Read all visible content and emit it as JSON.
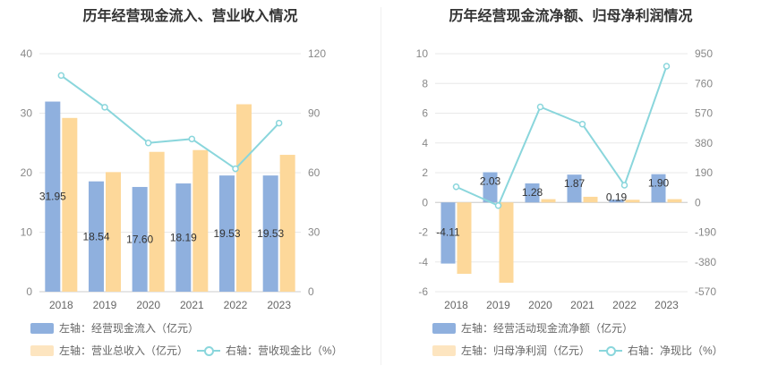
{
  "charts": [
    {
      "title": "历年经营现金流入、营业收入情况",
      "legend": {
        "bar1": "左轴：经营现金流入（亿元）",
        "bar2": "左轴：营业总收入（亿元）",
        "line": "右轴：营收现金比（%）"
      }
    },
    {
      "title": "历年经营现金流净额、归母净利润情况",
      "legend": {
        "bar1": "左轴：经营活动现金流净额（亿元）",
        "bar2": "左轴：归母净利润（亿元）",
        "line": "右轴：净现比（%）"
      }
    }
  ],
  "colors": {
    "bar1": "#8fb0de",
    "bar2": "#fdd89a",
    "line": "#8ad6dc",
    "grid": "#e8e8e8"
  },
  "chart_data": [
    {
      "type": "bar",
      "title": "历年经营现金流入、营业收入情况",
      "categories": [
        "2018",
        "2019",
        "2020",
        "2021",
        "2022",
        "2023"
      ],
      "series": [
        {
          "name": "左轴：经营现金流入（亿元）",
          "axis": "left",
          "kind": "bar",
          "values": [
            31.95,
            18.54,
            17.6,
            18.19,
            19.53,
            19.53
          ],
          "labels": [
            "31.95",
            "18.54",
            "17.60",
            "18.19",
            "19.53",
            "19.53"
          ]
        },
        {
          "name": "左轴：营业总收入（亿元）",
          "axis": "left",
          "kind": "bar",
          "values": [
            29.2,
            20.1,
            23.5,
            23.8,
            31.5,
            23.0
          ]
        },
        {
          "name": "右轴：营收现金比（%）",
          "axis": "right",
          "kind": "line",
          "values": [
            109,
            93,
            75,
            77,
            62,
            85
          ]
        }
      ],
      "left_axis": {
        "min": 0,
        "max": 40,
        "ticks": [
          "0",
          "10",
          "20",
          "30",
          "40"
        ]
      },
      "right_axis": {
        "min": 0,
        "max": 120,
        "ticks": [
          "0",
          "30",
          "60",
          "90",
          "120"
        ]
      }
    },
    {
      "type": "bar",
      "title": "历年经营现金流净额、归母净利润情况",
      "categories": [
        "2018",
        "2019",
        "2020",
        "2021",
        "2022",
        "2023"
      ],
      "series": [
        {
          "name": "左轴：经营活动现金流净额（亿元）",
          "axis": "left",
          "kind": "bar",
          "values": [
            -4.11,
            2.03,
            1.28,
            1.87,
            0.19,
            1.9
          ],
          "labels": [
            "-4.11",
            "2.03",
            "1.28",
            "1.87",
            "0.19",
            "1.90"
          ]
        },
        {
          "name": "左轴：归母净利润（亿元）",
          "axis": "left",
          "kind": "bar",
          "values": [
            -4.8,
            -5.4,
            0.22,
            0.38,
            0.18,
            0.22
          ]
        },
        {
          "name": "右轴：净现比（%）",
          "axis": "right",
          "kind": "line",
          "values": [
            100,
            -20,
            610,
            500,
            110,
            870
          ]
        }
      ],
      "left_axis": {
        "min": -6,
        "max": 10,
        "ticks": [
          "-6",
          "-4",
          "-2",
          "0",
          "2",
          "4",
          "6",
          "8",
          "10"
        ]
      },
      "right_axis": {
        "min": -570,
        "max": 950,
        "ticks": [
          "-570",
          "-380",
          "-190",
          "0",
          "190",
          "380",
          "570",
          "760",
          "950"
        ]
      }
    }
  ]
}
